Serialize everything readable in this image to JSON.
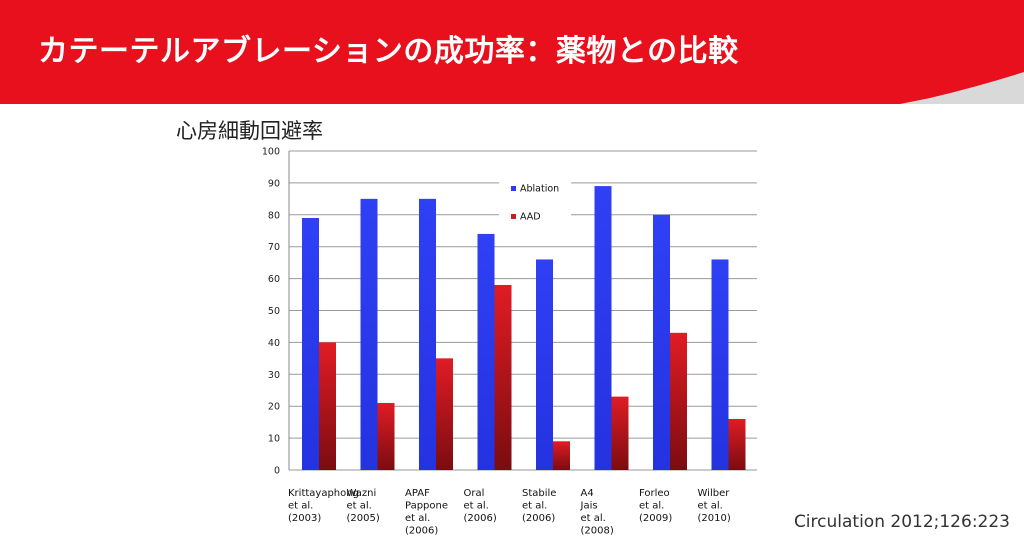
{
  "slide": {
    "title": "カテーテルアブレーションの成功率：薬物との比較",
    "citation": "Circulation 2012;126:223"
  },
  "colors": {
    "header_red": "#e8101c",
    "header_gray": "#d9d9d9",
    "ablation": "#2b3cf0",
    "aad": "#d01a22"
  },
  "chart_data": {
    "type": "bar",
    "title": "心房細動回避率",
    "categories": [
      [
        "Krittayaphong",
        "et al.",
        "(2003)"
      ],
      [
        "Wazni",
        "et al.",
        "(2005)"
      ],
      [
        "APAF",
        "Pappone",
        "et al.",
        "(2006)"
      ],
      [
        "Oral",
        "et al.",
        "(2006)"
      ],
      [
        "Stabile",
        "et al.",
        "(2006)"
      ],
      [
        "A4",
        "Jais",
        "et al.",
        "(2008)"
      ],
      [
        "Forleo",
        "et al.",
        "(2009)"
      ],
      [
        "Wilber",
        "et al.",
        "(2010)"
      ]
    ],
    "series": [
      {
        "name": "Ablation",
        "values": [
          79,
          85,
          85,
          74,
          66,
          89,
          80,
          66
        ]
      },
      {
        "name": "AAD",
        "values": [
          40,
          21,
          35,
          58,
          9,
          23,
          43,
          16
        ]
      }
    ],
    "ylim": [
      0,
      100
    ],
    "yticks": [
      0,
      10,
      20,
      30,
      40,
      50,
      60,
      70,
      80,
      90,
      100
    ],
    "grid": true,
    "legend": "top-center"
  }
}
